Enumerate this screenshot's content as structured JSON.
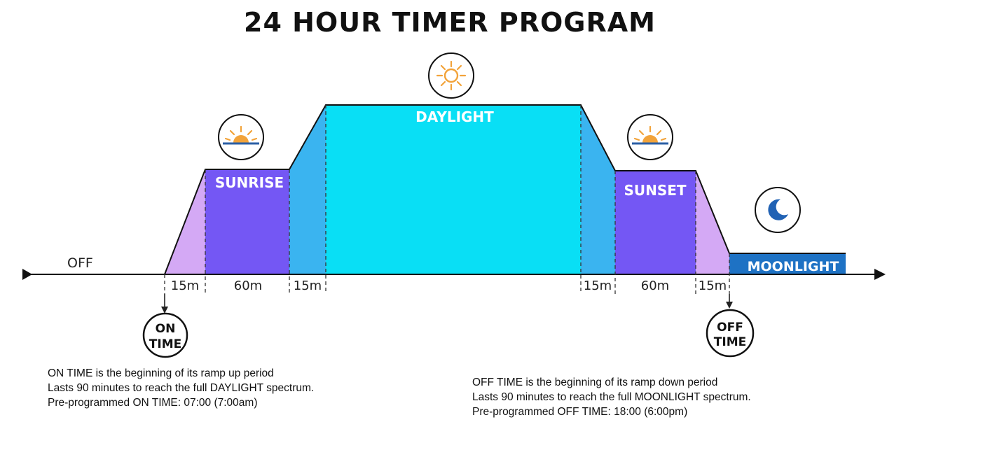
{
  "title": "24 HOUR TIMER PROGRAM",
  "colors": {
    "ramp_light": "#d4a9f5",
    "sunrise_sunset": "#7457f4",
    "ramp_blue": "#3ab4f0",
    "daylight": "#09dff5",
    "moonlight": "#1e72c4",
    "sun_icon": "#f2a33a",
    "horizon": "#2b5fa5",
    "moon_icon": "#2162b4"
  },
  "phases": {
    "off": "OFF",
    "sunrise": "SUNRISE",
    "daylight": "DAYLIGHT",
    "sunset": "SUNSET",
    "moonlight": "MOONLIGHT"
  },
  "durations": {
    "ramp_up_1": "15m",
    "sunrise": "60m",
    "ramp_up_2": "15m",
    "ramp_down_1": "15m",
    "sunset": "60m",
    "ramp_down_2": "15m"
  },
  "icons": {
    "sunrise": "sunrise-icon",
    "daylight": "sun-icon",
    "sunset": "sunset-icon",
    "moonlight": "moon-icon"
  },
  "markers": {
    "on_time": {
      "line1": "ON",
      "line2": "TIME"
    },
    "off_time": {
      "line1": "OFF",
      "line2": "TIME"
    }
  },
  "notes": {
    "on": [
      "ON TIME is the beginning of its ramp up period",
      "Lasts 90 minutes to reach the full DAYLIGHT spectrum.",
      "Pre-programmed ON TIME: 07:00 (7:00am)"
    ],
    "off": [
      "OFF TIME is the beginning of its ramp down period",
      "Lasts 90 minutes to reach the full MOONLIGHT spectrum.",
      "Pre-programmed OFF TIME: 18:00 (6:00pm)"
    ]
  }
}
